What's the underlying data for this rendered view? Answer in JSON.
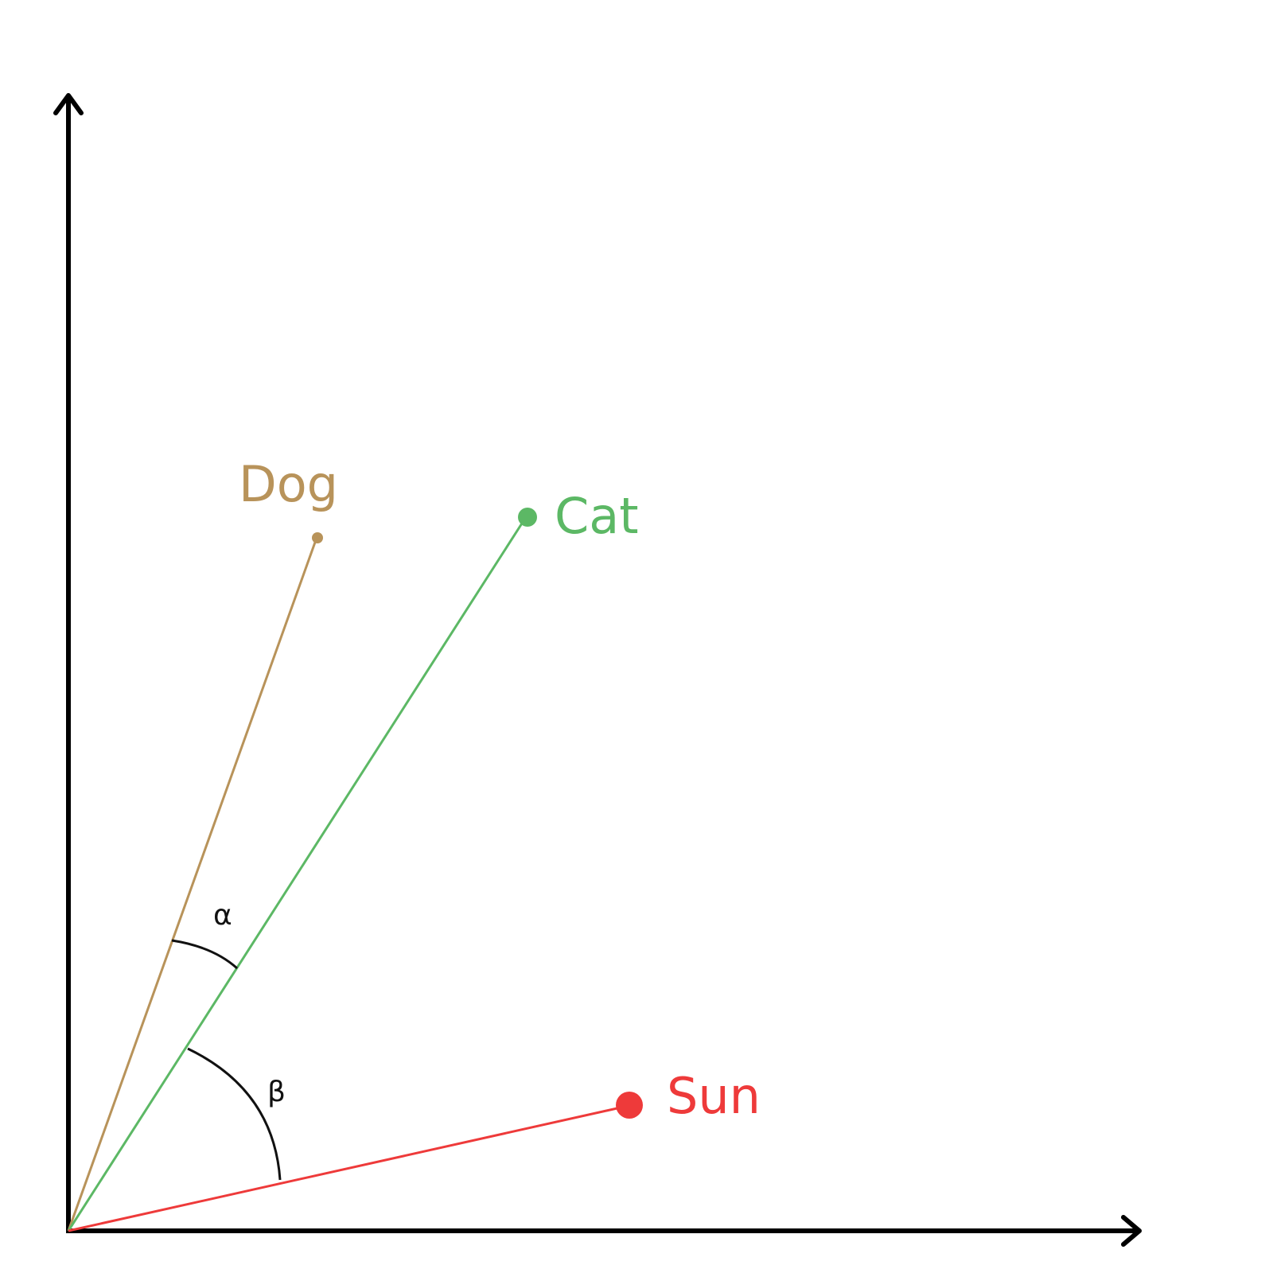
{
  "words": [
    {
      "id": "dog",
      "label": "Dog",
      "color": "#B8935A"
    },
    {
      "id": "cat",
      "label": "Cat",
      "color": "#5CB865"
    },
    {
      "id": "sun",
      "label": "Sun",
      "color": "#EE3A3A"
    }
  ],
  "angles": {
    "alpha": {
      "label": "α",
      "between": [
        "dog",
        "cat"
      ]
    },
    "beta": {
      "label": "β",
      "between": [
        "cat",
        "sun"
      ]
    }
  },
  "axis_color": "#000000"
}
